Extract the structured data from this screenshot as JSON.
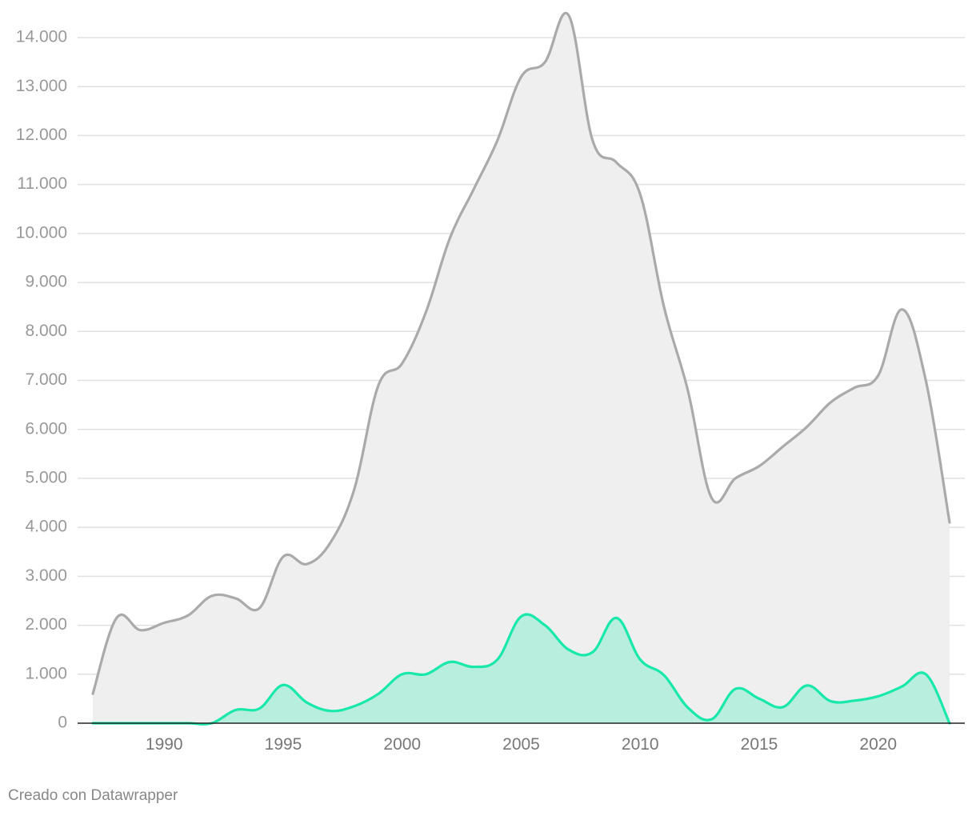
{
  "footer": {
    "credit": "Creado con Datawrapper"
  },
  "chart_data": {
    "type": "area",
    "title": "",
    "xlabel": "",
    "ylabel": "",
    "xlim": [
      1987,
      2023
    ],
    "ylim": [
      0,
      14000
    ],
    "grid": true,
    "x_ticks": [
      1990,
      1995,
      2000,
      2005,
      2010,
      2015,
      2020
    ],
    "x_tick_labels": [
      "1990",
      "1995",
      "2000",
      "2005",
      "2010",
      "2015",
      "2020"
    ],
    "y_ticks": [
      0,
      1000,
      2000,
      3000,
      4000,
      5000,
      6000,
      7000,
      8000,
      9000,
      10000,
      11000,
      12000,
      13000,
      14000
    ],
    "y_tick_labels": [
      "0",
      "1.000",
      "2.000",
      "3.000",
      "4.000",
      "5.000",
      "6.000",
      "7.000",
      "8.000",
      "9.000",
      "10.000",
      "11.000",
      "12.000",
      "13.000",
      "14.000"
    ],
    "x": [
      1987,
      1988,
      1989,
      1990,
      1991,
      1992,
      1993,
      1994,
      1995,
      1996,
      1997,
      1998,
      1999,
      2000,
      2001,
      2002,
      2003,
      2004,
      2005,
      2006,
      2007,
      2008,
      2009,
      2010,
      2011,
      2012,
      2013,
      2014,
      2015,
      2016,
      2017,
      2018,
      2019,
      2020,
      2021,
      2022,
      2023
    ],
    "series": [
      {
        "line_color": "#aaaaaa",
        "fill_color": "#efefef",
        "values": [
          600,
          2150,
          1900,
          2050,
          2200,
          2600,
          2550,
          2350,
          3400,
          3250,
          3700,
          4800,
          6900,
          7350,
          8400,
          9900,
          10900,
          11900,
          13200,
          13500,
          14450,
          11900,
          11450,
          10800,
          8500,
          6800,
          4600,
          5000,
          5250,
          5650,
          6050,
          6550,
          6850,
          7100,
          8450,
          7000,
          4100
        ]
      },
      {
        "line_color": "#18e8aa",
        "fill_color": "#b8eedd",
        "values": [
          0,
          0,
          0,
          0,
          0,
          0,
          270,
          300,
          780,
          420,
          250,
          350,
          600,
          1000,
          1000,
          1250,
          1150,
          1300,
          2180,
          2000,
          1500,
          1450,
          2150,
          1300,
          980,
          320,
          80,
          700,
          500,
          330,
          770,
          450,
          460,
          550,
          750,
          1000,
          0
        ]
      }
    ]
  }
}
